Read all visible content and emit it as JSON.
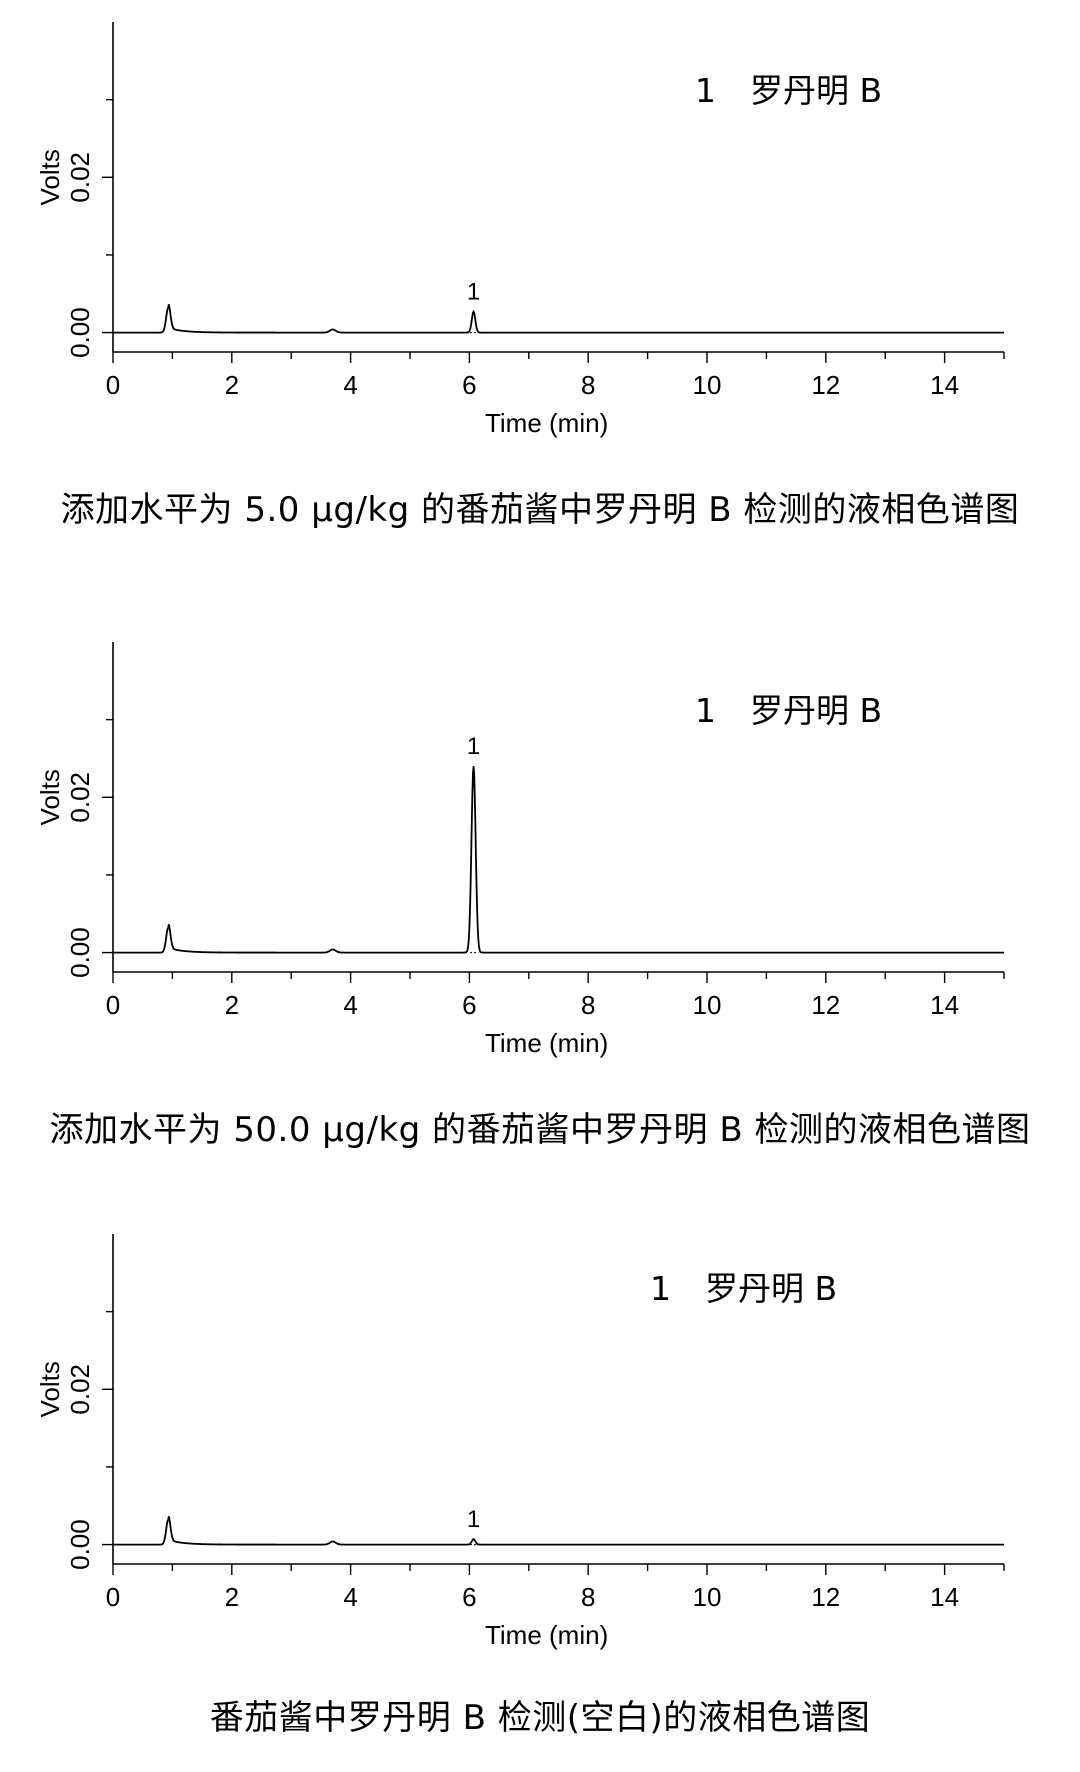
{
  "chart_data": [
    {
      "type": "line",
      "xlabel": "Time (min)",
      "ylabel": "Volts",
      "xlim": [
        0,
        15
      ],
      "ylim": [
        -0.0025,
        0.04
      ],
      "x_ticks": [
        0,
        2,
        4,
        6,
        8,
        10,
        12,
        14
      ],
      "x_tick_labels": [
        "0",
        "2",
        "4",
        "6",
        "8",
        "10",
        "12",
        "14"
      ],
      "y_ticks": [
        0.0,
        0.02
      ],
      "y_tick_labels": [
        "0.00",
        "0.02"
      ],
      "legend": {
        "number": "1",
        "name": "罗丹明 B"
      },
      "peak_label": {
        "text": "1",
        "x": 6.07
      },
      "baseline": 0.0,
      "peaks": [
        {
          "x": 0.93,
          "height": 0.0032,
          "width": 0.035,
          "tail": 0.0006
        },
        {
          "x": 3.7,
          "height": 0.0004,
          "width": 0.05,
          "tail": 0.0
        },
        {
          "x": 6.07,
          "height": 0.0027,
          "width": 0.03,
          "tail": 0.0
        }
      ],
      "caption": "添加水平为 5.0 μg/kg 的番茄酱中罗丹明 B 检测的液相色谱图"
    },
    {
      "type": "line",
      "xlabel": "Time (min)",
      "ylabel": "Volts",
      "xlim": [
        0,
        15
      ],
      "ylim": [
        -0.0025,
        0.04
      ],
      "x_ticks": [
        0,
        2,
        4,
        6,
        8,
        10,
        12,
        14
      ],
      "x_tick_labels": [
        "0",
        "2",
        "4",
        "6",
        "8",
        "10",
        "12",
        "14"
      ],
      "y_ticks": [
        0.0,
        0.02
      ],
      "y_tick_labels": [
        "0.00",
        "0.02"
      ],
      "legend": {
        "number": "1",
        "name": "罗丹明 B"
      },
      "peak_label": {
        "text": "1",
        "x": 6.07
      },
      "baseline": 0.0,
      "peaks": [
        {
          "x": 0.93,
          "height": 0.0032,
          "width": 0.035,
          "tail": 0.0006
        },
        {
          "x": 3.7,
          "height": 0.0004,
          "width": 0.05,
          "tail": 0.0
        },
        {
          "x": 6.07,
          "height": 0.024,
          "width": 0.035,
          "tail": 0.0
        }
      ],
      "caption": "添加水平为 50.0 μg/kg 的番茄酱中罗丹明 B 检测的液相色谱图"
    },
    {
      "type": "line",
      "xlabel": "Time (min)",
      "ylabel": "Volts",
      "xlim": [
        0,
        15
      ],
      "ylim": [
        -0.0025,
        0.04
      ],
      "x_ticks": [
        0,
        2,
        4,
        6,
        8,
        10,
        12,
        14
      ],
      "x_tick_labels": [
        "0",
        "2",
        "4",
        "6",
        "8",
        "10",
        "12",
        "14"
      ],
      "y_ticks": [
        0.0,
        0.02
      ],
      "y_tick_labels": [
        "0.00",
        "0.02"
      ],
      "legend": {
        "number": "1",
        "name": "罗丹明 B"
      },
      "peak_label": {
        "text": "1",
        "x": 6.07
      },
      "baseline": 0.0,
      "peaks": [
        {
          "x": 0.93,
          "height": 0.0032,
          "width": 0.035,
          "tail": 0.0006
        },
        {
          "x": 3.7,
          "height": 0.0004,
          "width": 0.05,
          "tail": 0.0
        },
        {
          "x": 6.07,
          "height": 0.0007,
          "width": 0.03,
          "tail": 0.0
        }
      ],
      "caption": "番茄酱中罗丹明 B 检测(空白)的液相色谱图"
    }
  ]
}
